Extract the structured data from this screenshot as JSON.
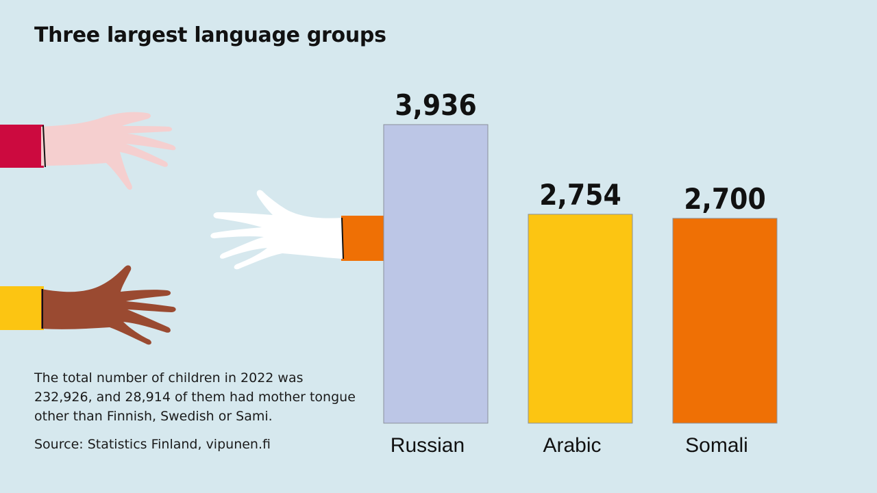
{
  "title": "Three largest language groups",
  "note": "The total number of children in 2022 was 232,926, and 28,914 of them had mother tongue other than Finnish, Swedish or Sami.",
  "source": "Source: Statistics Finland, vipunen.fi",
  "colors": {
    "background": "#d6e8ee",
    "russian": "#bcc6e6",
    "arabic": "#fcc512",
    "somali": "#ef7005"
  },
  "illustration": [
    "pink-hand-icon",
    "white-hand-icon",
    "brown-hand-icon"
  ],
  "chart_data": {
    "type": "bar",
    "categories": [
      "Russian",
      "Arabic",
      "Somali"
    ],
    "values": [
      3936,
      2754,
      2700
    ],
    "value_labels": [
      "3,936",
      "2,754",
      "2,700"
    ],
    "colors": [
      "#bcc6e6",
      "#fcc512",
      "#ef7005"
    ],
    "ylim": [
      0,
      3936
    ],
    "grid": false
  }
}
